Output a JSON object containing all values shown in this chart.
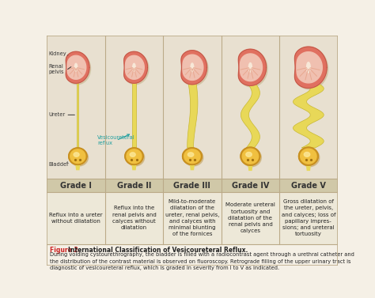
{
  "title": "Figure 2. International Classification of Vesicoureteral Reflux.",
  "caption": "During voiding cystourethrography, the bladder is filled with a radiocontrast agent through a urethral catheter and\nthe distribution of the contrast material is observed on fluoroscopy. Retrograde filling of the upper urinary tract is\ndiagnostic of vesicoureteral reflux, which is graded in severity from I to V as indicated.",
  "grades": [
    "Grade I",
    "Grade II",
    "Grade III",
    "Grade IV",
    "Grade V"
  ],
  "descriptions": [
    "Reflux into a ureter\nwithout dilatation",
    "Reflux into the\nrenal pelvis and\ncalyces without\ndilatation",
    "Mild-to-moderate\ndilatation of the\nureter, renal pelvis,\nand calyces with\nminimal blunting\nof the fornices",
    "Moderate ureteral\ntortuosity and\ndilatation of the\nrenal pelvis and\ncalyces",
    "Gross dilatation of\nthe ureter, pelvis,\nand calyces; loss of\npapillary impres-\nsions; and ureteral\ntortuosity"
  ],
  "bg_color": "#f5f0e6",
  "image_bg": "#e8e0d0",
  "grade_bg": "#d0c8a8",
  "desc_bg": "#ede8d8",
  "caption_bg": "#f5f0e6",
  "kidney_outer": "#e07060",
  "kidney_inner": "#d86858",
  "kidney_pale": "#f0c0b0",
  "kidney_center": "#f8e8d8",
  "ureter_fill": "#e8d858",
  "ureter_edge": "#c8b830",
  "bladder_fill": "#f0c040",
  "bladder_edge": "#c89020",
  "bladder_inner": "#f8d860",
  "annotation_color": "#20a0a0",
  "label_color": "#333333",
  "grade_text_color": "#333333",
  "figure_label_color": "#cc2222",
  "body_text_color": "#222222",
  "border_color": "#bbaa88",
  "divider_color": "#bbaa88"
}
